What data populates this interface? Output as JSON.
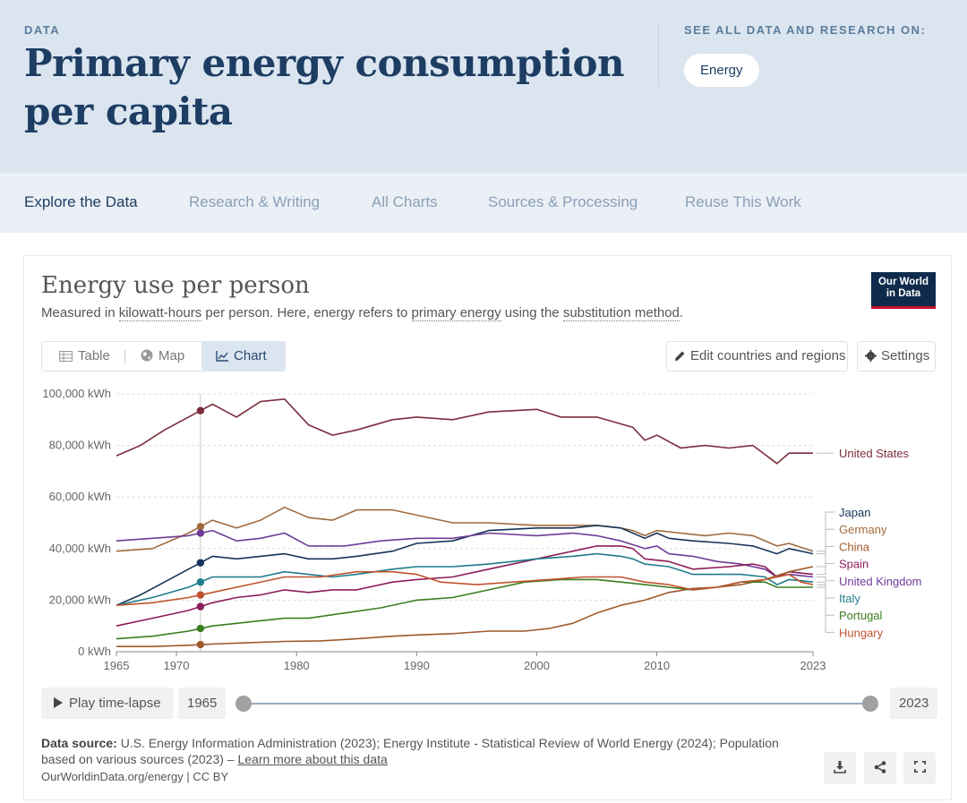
{
  "header": {
    "kicker": "DATA",
    "title": "Primary energy consumption per capita",
    "see_all": "SEE ALL DATA AND RESEARCH ON:",
    "topic": "Energy"
  },
  "nav": {
    "items": [
      "Explore the Data",
      "Research & Writing",
      "All Charts",
      "Sources & Processing",
      "Reuse This Work"
    ],
    "active": "Explore the Data"
  },
  "card": {
    "title": "Energy use per person",
    "subtitle_parts": {
      "p1": "Measured in ",
      "link1": "kilowatt-hours",
      "p2": " per person. Here, energy refers to ",
      "link2": "primary energy",
      "p3": " using the ",
      "link3": "substitution method",
      "p4": "."
    },
    "logo_line1": "Our World",
    "logo_line2": "in Data",
    "tabs": [
      "Table",
      "Map",
      "Chart"
    ],
    "active_tab": "Chart",
    "edit_label": "Edit countries and regions",
    "settings_label": "Settings"
  },
  "timeline": {
    "play_label": "Play time-lapse",
    "start_year": "1965",
    "end_year": "2023"
  },
  "footer": {
    "source_label": "Data source:",
    "source_text": "U.S. Energy Information Administration (2023); Energy Institute - Statistical Review of World Energy (2024); Population based on various sources (2023) – ",
    "learn_more": "Learn more about this data",
    "license": "OurWorldinData.org/energy | CC BY"
  },
  "colors": {
    "United States": "#7b2d3b",
    "Japan": "#163558",
    "Germany": "#a06a3c",
    "China": "#9c5a2a",
    "Spain": "#8c1d59",
    "United Kingdom": "#6f3b97",
    "Italy": "#1f7c8c",
    "Portugal": "#3a7d1f",
    "Hungary": "#c0522d"
  },
  "chart_data": {
    "type": "line",
    "title": "Energy use per person",
    "ylabel": "",
    "xlabel": "",
    "xlim": [
      1965,
      2023
    ],
    "ylim": [
      0,
      100000
    ],
    "y_ticks": [
      "0 kWh",
      "20,000 kWh",
      "40,000 kWh",
      "60,000 kWh",
      "80,000 kWh",
      "100,000 kWh"
    ],
    "x_ticks": [
      1965,
      1970,
      1980,
      1990,
      2000,
      2010,
      2023
    ],
    "grid": true,
    "hover_year": 1972,
    "series": [
      {
        "name": "United States",
        "points": [
          [
            1965,
            76000
          ],
          [
            1967,
            80000
          ],
          [
            1969,
            86000
          ],
          [
            1971,
            91000
          ],
          [
            1973,
            96000
          ],
          [
            1975,
            91000
          ],
          [
            1977,
            97000
          ],
          [
            1979,
            98000
          ],
          [
            1981,
            88000
          ],
          [
            1983,
            84000
          ],
          [
            1985,
            86000
          ],
          [
            1988,
            90000
          ],
          [
            1990,
            91000
          ],
          [
            1993,
            90000
          ],
          [
            1996,
            93000
          ],
          [
            2000,
            94000
          ],
          [
            2002,
            91000
          ],
          [
            2005,
            91000
          ],
          [
            2008,
            87000
          ],
          [
            2009,
            82000
          ],
          [
            2010,
            84000
          ],
          [
            2012,
            79000
          ],
          [
            2014,
            80000
          ],
          [
            2016,
            79000
          ],
          [
            2018,
            80000
          ],
          [
            2020,
            73000
          ],
          [
            2021,
            77000
          ],
          [
            2023,
            77000
          ]
        ]
      },
      {
        "name": "Germany",
        "points": [
          [
            1965,
            39000
          ],
          [
            1968,
            40000
          ],
          [
            1971,
            46000
          ],
          [
            1973,
            51000
          ],
          [
            1975,
            48000
          ],
          [
            1977,
            51000
          ],
          [
            1979,
            56000
          ],
          [
            1981,
            52000
          ],
          [
            1983,
            51000
          ],
          [
            1985,
            55000
          ],
          [
            1988,
            55000
          ],
          [
            1990,
            53000
          ],
          [
            1993,
            50000
          ],
          [
            1996,
            50000
          ],
          [
            2000,
            49000
          ],
          [
            2005,
            49000
          ],
          [
            2007,
            48000
          ],
          [
            2008,
            47000
          ],
          [
            2009,
            45000
          ],
          [
            2010,
            47000
          ],
          [
            2012,
            46000
          ],
          [
            2014,
            45000
          ],
          [
            2016,
            46000
          ],
          [
            2018,
            45000
          ],
          [
            2020,
            41000
          ],
          [
            2021,
            42000
          ],
          [
            2023,
            39000
          ]
        ]
      },
      {
        "name": "Japan",
        "points": [
          [
            1965,
            18000
          ],
          [
            1967,
            22000
          ],
          [
            1969,
            27000
          ],
          [
            1971,
            32000
          ],
          [
            1973,
            37000
          ],
          [
            1975,
            36000
          ],
          [
            1977,
            37000
          ],
          [
            1979,
            38000
          ],
          [
            1981,
            36000
          ],
          [
            1983,
            36000
          ],
          [
            1985,
            37000
          ],
          [
            1988,
            39000
          ],
          [
            1990,
            42000
          ],
          [
            1993,
            43000
          ],
          [
            1996,
            47000
          ],
          [
            2000,
            48000
          ],
          [
            2003,
            48000
          ],
          [
            2005,
            49000
          ],
          [
            2007,
            48000
          ],
          [
            2008,
            46000
          ],
          [
            2009,
            44000
          ],
          [
            2010,
            46000
          ],
          [
            2011,
            44000
          ],
          [
            2013,
            43000
          ],
          [
            2016,
            42000
          ],
          [
            2018,
            41000
          ],
          [
            2020,
            38000
          ],
          [
            2021,
            40000
          ],
          [
            2023,
            38000
          ]
        ]
      },
      {
        "name": "United Kingdom",
        "points": [
          [
            1965,
            43000
          ],
          [
            1968,
            44000
          ],
          [
            1971,
            45000
          ],
          [
            1973,
            47000
          ],
          [
            1975,
            43000
          ],
          [
            1977,
            44000
          ],
          [
            1979,
            46000
          ],
          [
            1981,
            41000
          ],
          [
            1984,
            41000
          ],
          [
            1987,
            43000
          ],
          [
            1990,
            44000
          ],
          [
            1993,
            44000
          ],
          [
            1996,
            46000
          ],
          [
            2000,
            45000
          ],
          [
            2003,
            46000
          ],
          [
            2005,
            45000
          ],
          [
            2007,
            43000
          ],
          [
            2009,
            40000
          ],
          [
            2010,
            41000
          ],
          [
            2011,
            38000
          ],
          [
            2013,
            37000
          ],
          [
            2015,
            35000
          ],
          [
            2017,
            34000
          ],
          [
            2019,
            32000
          ],
          [
            2020,
            29000
          ],
          [
            2021,
            30000
          ],
          [
            2023,
            29000
          ]
        ]
      },
      {
        "name": "Spain",
        "points": [
          [
            1965,
            10000
          ],
          [
            1968,
            13000
          ],
          [
            1971,
            16000
          ],
          [
            1973,
            19000
          ],
          [
            1975,
            21000
          ],
          [
            1977,
            22000
          ],
          [
            1979,
            24000
          ],
          [
            1981,
            23000
          ],
          [
            1983,
            24000
          ],
          [
            1985,
            24000
          ],
          [
            1988,
            27000
          ],
          [
            1990,
            28000
          ],
          [
            1993,
            29000
          ],
          [
            1996,
            32000
          ],
          [
            2000,
            36000
          ],
          [
            2003,
            39000
          ],
          [
            2005,
            41000
          ],
          [
            2007,
            41000
          ],
          [
            2008,
            40000
          ],
          [
            2009,
            36000
          ],
          [
            2011,
            35000
          ],
          [
            2013,
            32000
          ],
          [
            2016,
            33000
          ],
          [
            2018,
            34000
          ],
          [
            2019,
            33000
          ],
          [
            2020,
            29000
          ],
          [
            2021,
            31000
          ],
          [
            2023,
            30000
          ]
        ]
      },
      {
        "name": "Italy",
        "points": [
          [
            1965,
            18000
          ],
          [
            1968,
            21000
          ],
          [
            1971,
            25000
          ],
          [
            1973,
            29000
          ],
          [
            1975,
            29000
          ],
          [
            1977,
            29000
          ],
          [
            1979,
            31000
          ],
          [
            1981,
            30000
          ],
          [
            1983,
            29000
          ],
          [
            1985,
            30000
          ],
          [
            1988,
            32000
          ],
          [
            1990,
            33000
          ],
          [
            1993,
            33000
          ],
          [
            1996,
            34000
          ],
          [
            2000,
            36000
          ],
          [
            2003,
            37000
          ],
          [
            2005,
            38000
          ],
          [
            2007,
            37000
          ],
          [
            2008,
            36000
          ],
          [
            2009,
            34000
          ],
          [
            2011,
            33000
          ],
          [
            2013,
            30000
          ],
          [
            2015,
            30000
          ],
          [
            2017,
            30000
          ],
          [
            2019,
            29000
          ],
          [
            2020,
            26000
          ],
          [
            2021,
            28000
          ],
          [
            2023,
            27000
          ]
        ]
      },
      {
        "name": "China",
        "points": [
          [
            1965,
            2000
          ],
          [
            1968,
            2000
          ],
          [
            1971,
            2500
          ],
          [
            1973,
            3000
          ],
          [
            1976,
            3500
          ],
          [
            1979,
            4000
          ],
          [
            1982,
            4200
          ],
          [
            1985,
            5000
          ],
          [
            1988,
            6000
          ],
          [
            1990,
            6500
          ],
          [
            1993,
            7000
          ],
          [
            1996,
            8000
          ],
          [
            1999,
            8000
          ],
          [
            2001,
            9000
          ],
          [
            2003,
            11000
          ],
          [
            2005,
            15000
          ],
          [
            2007,
            18000
          ],
          [
            2009,
            20000
          ],
          [
            2011,
            23000
          ],
          [
            2013,
            24500
          ],
          [
            2015,
            25000
          ],
          [
            2017,
            26000
          ],
          [
            2019,
            28000
          ],
          [
            2021,
            31000
          ],
          [
            2023,
            33000
          ]
        ]
      },
      {
        "name": "Portugal",
        "points": [
          [
            1965,
            5000
          ],
          [
            1968,
            6000
          ],
          [
            1971,
            8000
          ],
          [
            1973,
            10000
          ],
          [
            1975,
            11000
          ],
          [
            1977,
            12000
          ],
          [
            1979,
            13000
          ],
          [
            1981,
            13000
          ],
          [
            1984,
            15000
          ],
          [
            1987,
            17000
          ],
          [
            1990,
            20000
          ],
          [
            1993,
            21000
          ],
          [
            1996,
            24000
          ],
          [
            1999,
            27000
          ],
          [
            2002,
            28000
          ],
          [
            2005,
            28000
          ],
          [
            2007,
            27000
          ],
          [
            2009,
            26000
          ],
          [
            2011,
            25000
          ],
          [
            2013,
            24000
          ],
          [
            2015,
            25000
          ],
          [
            2017,
            27000
          ],
          [
            2019,
            27000
          ],
          [
            2020,
            25000
          ],
          [
            2023,
            25000
          ]
        ]
      },
      {
        "name": "Hungary",
        "points": [
          [
            1965,
            18000
          ],
          [
            1968,
            19000
          ],
          [
            1971,
            21000
          ],
          [
            1973,
            23000
          ],
          [
            1976,
            26000
          ],
          [
            1979,
            29000
          ],
          [
            1982,
            29000
          ],
          [
            1985,
            31000
          ],
          [
            1988,
            31000
          ],
          [
            1990,
            30000
          ],
          [
            1992,
            27000
          ],
          [
            1995,
            26000
          ],
          [
            1998,
            27000
          ],
          [
            2001,
            28000
          ],
          [
            2004,
            29000
          ],
          [
            2007,
            29000
          ],
          [
            2009,
            27000
          ],
          [
            2011,
            26000
          ],
          [
            2013,
            24000
          ],
          [
            2015,
            25000
          ],
          [
            2017,
            27000
          ],
          [
            2019,
            28000
          ],
          [
            2021,
            30000
          ],
          [
            2022,
            27000
          ],
          [
            2023,
            26000
          ]
        ]
      }
    ],
    "legend_order": [
      "United States",
      "Japan",
      "Germany",
      "China",
      "Spain",
      "United Kingdom",
      "Italy",
      "Portugal",
      "Hungary"
    ]
  }
}
